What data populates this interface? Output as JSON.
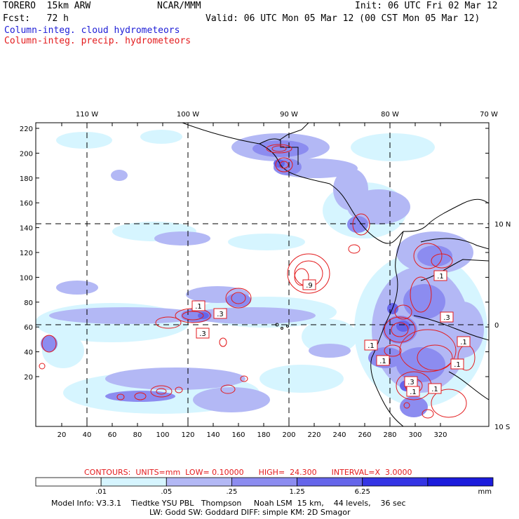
{
  "header": {
    "model": "TORERO  15km ARW",
    "center": "NCAR/MMM",
    "init": "Init: 06 UTC Fri 02 Mar 12",
    "fcst": "Fcst:   72 h",
    "valid": "Valid: 06 UTC Mon 05 Mar 12 (00 CST Mon 05 Mar 12)",
    "legend_cloud": "Column-integ. cloud hydrometeors",
    "legend_precip": "Column-integ. precip. hydrometeors"
  },
  "map": {
    "lon_labels": [
      "110 W",
      "100 W",
      "90 W",
      "80 W",
      "70 W"
    ],
    "lat_labels_right": [
      "10 N",
      "0",
      "10 S"
    ],
    "y_ticks": [
      "220",
      "200",
      "180",
      "160",
      "140",
      "120",
      "100",
      "80",
      "60",
      "40",
      "20"
    ],
    "x_ticks": [
      "20",
      "40",
      "60",
      "80",
      "100",
      "120",
      "140",
      "160",
      "180",
      "200",
      "220",
      "240",
      "260",
      "280",
      "300",
      "320"
    ],
    "contour_labels": [
      ".1",
      ".3",
      ".3",
      ".9",
      ".1",
      ".3",
      ".1",
      ".1",
      ".1",
      ".1",
      ".1",
      ".1",
      ".3"
    ]
  },
  "footer": {
    "contours_info": "CONTOURS:  UNITS=mm  LOW= 0.10000      HIGH=  24.300      INTERVAL=X  3.0000",
    "colorbar_labels": [
      ".01",
      ".05",
      ".25",
      "1.25",
      "6.25"
    ],
    "colorbar_unit": "mm",
    "colorbar_colors": [
      "#ffffff",
      "#d6f5ff",
      "#b3b8f5",
      "#8c8cf0",
      "#6565ea",
      "#3434e4",
      "#1c1cdc"
    ],
    "model_info_1": "Model Info: V3.3.1    Tiedtke YSU PBL   Thompson     Noah LSM  15 km,    44 levels,    36 sec",
    "model_info_2": "LW: Godd SW: Goddard DIFF: simple KM: 2D Smagor"
  }
}
